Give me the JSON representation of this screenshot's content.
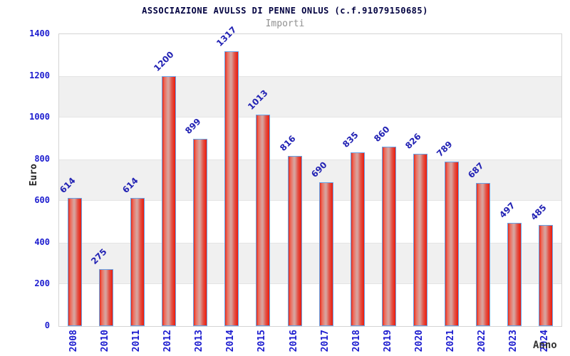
{
  "header": {
    "title": "ASSOCIAZIONE AVULSS DI PENNE ONLUS (c.f.91079150685)",
    "subtitle": "Importi"
  },
  "chart_data": {
    "type": "bar",
    "title": "ASSOCIAZIONE AVULSS DI PENNE ONLUS (c.f.91079150685)",
    "subtitle": "Importi",
    "xlabel": "Anno",
    "ylabel": "Euro",
    "categories": [
      "2008",
      "2010",
      "2011",
      "2012",
      "2013",
      "2014",
      "2015",
      "2016",
      "2017",
      "2018",
      "2019",
      "2020",
      "2021",
      "2022",
      "2023",
      "2024"
    ],
    "values": [
      614,
      275,
      614,
      1200,
      899,
      1317,
      1013,
      816,
      690,
      835,
      860,
      826,
      789,
      687,
      497,
      485
    ],
    "ylim": [
      0,
      1400
    ],
    "yticks": [
      0,
      200,
      400,
      600,
      800,
      1000,
      1200,
      1400
    ],
    "grid": "alternating-horizontal-bands",
    "legend": "none",
    "colors": {
      "bar_edge": "#66a3e8",
      "bar_fill_dark": "#e42b1c",
      "bar_fill_light": "#d8a39d",
      "tick_label": "#1c1ccf",
      "value_label": "#2323b4",
      "band": "#f0f0f0",
      "plot_border": "#d4d4d4",
      "title": "#000040",
      "subtitle": "#909090",
      "axis_title": "#222222"
    }
  }
}
